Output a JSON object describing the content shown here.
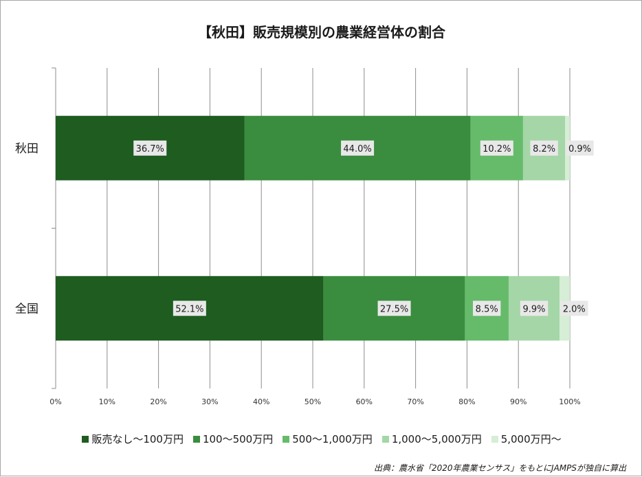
{
  "title": "【秋田】販売規模別の農業経営体の割合",
  "source": "出典：農水省「2020年農業センサス」をもとにJAMPSが独自に算出",
  "chart_data": {
    "type": "bar",
    "orientation": "horizontal",
    "stacked": true,
    "categories": [
      "秋田",
      "全国"
    ],
    "series": [
      {
        "name": "販売なし〜100万円",
        "color": "#1e5c20",
        "values": [
          36.7,
          52.1
        ],
        "labels": [
          "36.7%",
          "52.1%"
        ]
      },
      {
        "name": "100〜500万円",
        "color": "#3a8d3e",
        "values": [
          44.0,
          27.5
        ],
        "labels": [
          "44.0%",
          "27.5%"
        ]
      },
      {
        "name": "500〜1,000万円",
        "color": "#66bb6a",
        "values": [
          10.2,
          8.5
        ],
        "labels": [
          "10.2%",
          "8.5%"
        ]
      },
      {
        "name": "1,000〜5,000万円",
        "color": "#a5d6a7",
        "values": [
          8.2,
          9.9
        ],
        "labels": [
          "8.2%",
          "9.9%"
        ]
      },
      {
        "name": "5,000万円〜",
        "color": "#d6edd6",
        "values": [
          0.9,
          2.0
        ],
        "labels": [
          "0.9%",
          "2.0%"
        ]
      }
    ],
    "xlim": [
      0,
      100
    ],
    "x_ticks": [
      "0%",
      "10%",
      "20%",
      "30%",
      "40%",
      "50%",
      "60%",
      "70%",
      "80%",
      "90%",
      "100%"
    ],
    "grid": true,
    "legend_position": "bottom"
  }
}
